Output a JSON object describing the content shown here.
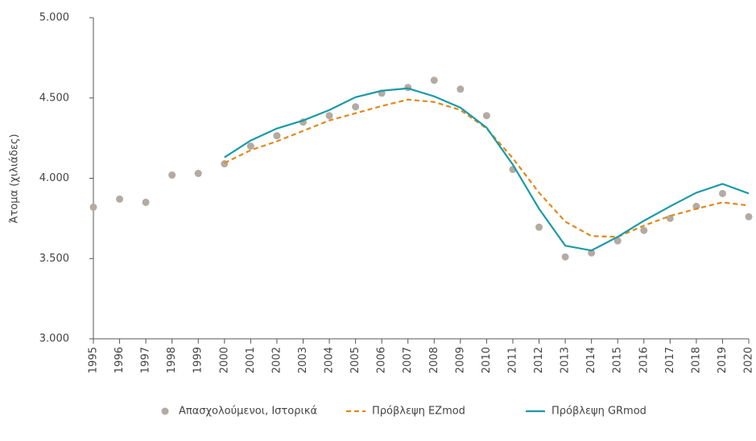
{
  "chart_data": {
    "type": "line",
    "y_label": "Άτομα (χιλιάδες)",
    "x": [
      1995,
      1996,
      1997,
      1998,
      1999,
      2000,
      2001,
      2002,
      2003,
      2004,
      2005,
      2006,
      2007,
      2008,
      2009,
      2010,
      2011,
      2012,
      2013,
      2014,
      2015,
      2016,
      2017,
      2018,
      2019,
      2020
    ],
    "xlim": [
      1995,
      2020
    ],
    "xticks": [
      1995,
      1996,
      1997,
      1998,
      1999,
      2000,
      2001,
      2002,
      2003,
      2004,
      2005,
      2006,
      2007,
      2008,
      2009,
      2010,
      2011,
      2012,
      2013,
      2014,
      2015,
      2016,
      2017,
      2018,
      2019,
      2020
    ],
    "ylim": [
      3000,
      5000
    ],
    "yticks": [
      {
        "value": 3000,
        "label": "3.000"
      },
      {
        "value": 3500,
        "label": "3.500"
      },
      {
        "value": 4000,
        "label": "4.000"
      },
      {
        "value": 4500,
        "label": "4.500"
      },
      {
        "value": 5000,
        "label": "5.000"
      }
    ],
    "grid": false,
    "legend": "bottom",
    "series": [
      {
        "name": "Απασχολούμενοι, Ιστορικά",
        "type": "scatter",
        "color": "#b3aba3",
        "values": [
          3820,
          3870,
          3850,
          4020,
          4030,
          4090,
          4200,
          4265,
          4350,
          4390,
          4445,
          4530,
          4565,
          4610,
          4555,
          4390,
          4055,
          3695,
          3510,
          3535,
          3610,
          3675,
          3750,
          3825,
          3905,
          3760
        ]
      },
      {
        "name": "Πρόβλεψη EZmod",
        "type": "line",
        "dashed": true,
        "color": "#e0891c",
        "values": [
          null,
          null,
          null,
          null,
          null,
          4095,
          4175,
          4230,
          4295,
          4360,
          4405,
          4450,
          4490,
          4475,
          4425,
          4310,
          4125,
          3910,
          3730,
          3640,
          3635,
          3705,
          3765,
          3810,
          3850,
          3830
        ]
      },
      {
        "name": "Πρόβλεψη GRmod",
        "type": "line",
        "dashed": false,
        "color": "#1b9aa7",
        "values": [
          null,
          null,
          null,
          null,
          null,
          4130,
          4235,
          4310,
          4360,
          4425,
          4505,
          4545,
          4560,
          4510,
          4440,
          4315,
          4085,
          3810,
          3580,
          3550,
          3635,
          3735,
          3825,
          3910,
          3965,
          3905
        ]
      }
    ]
  }
}
